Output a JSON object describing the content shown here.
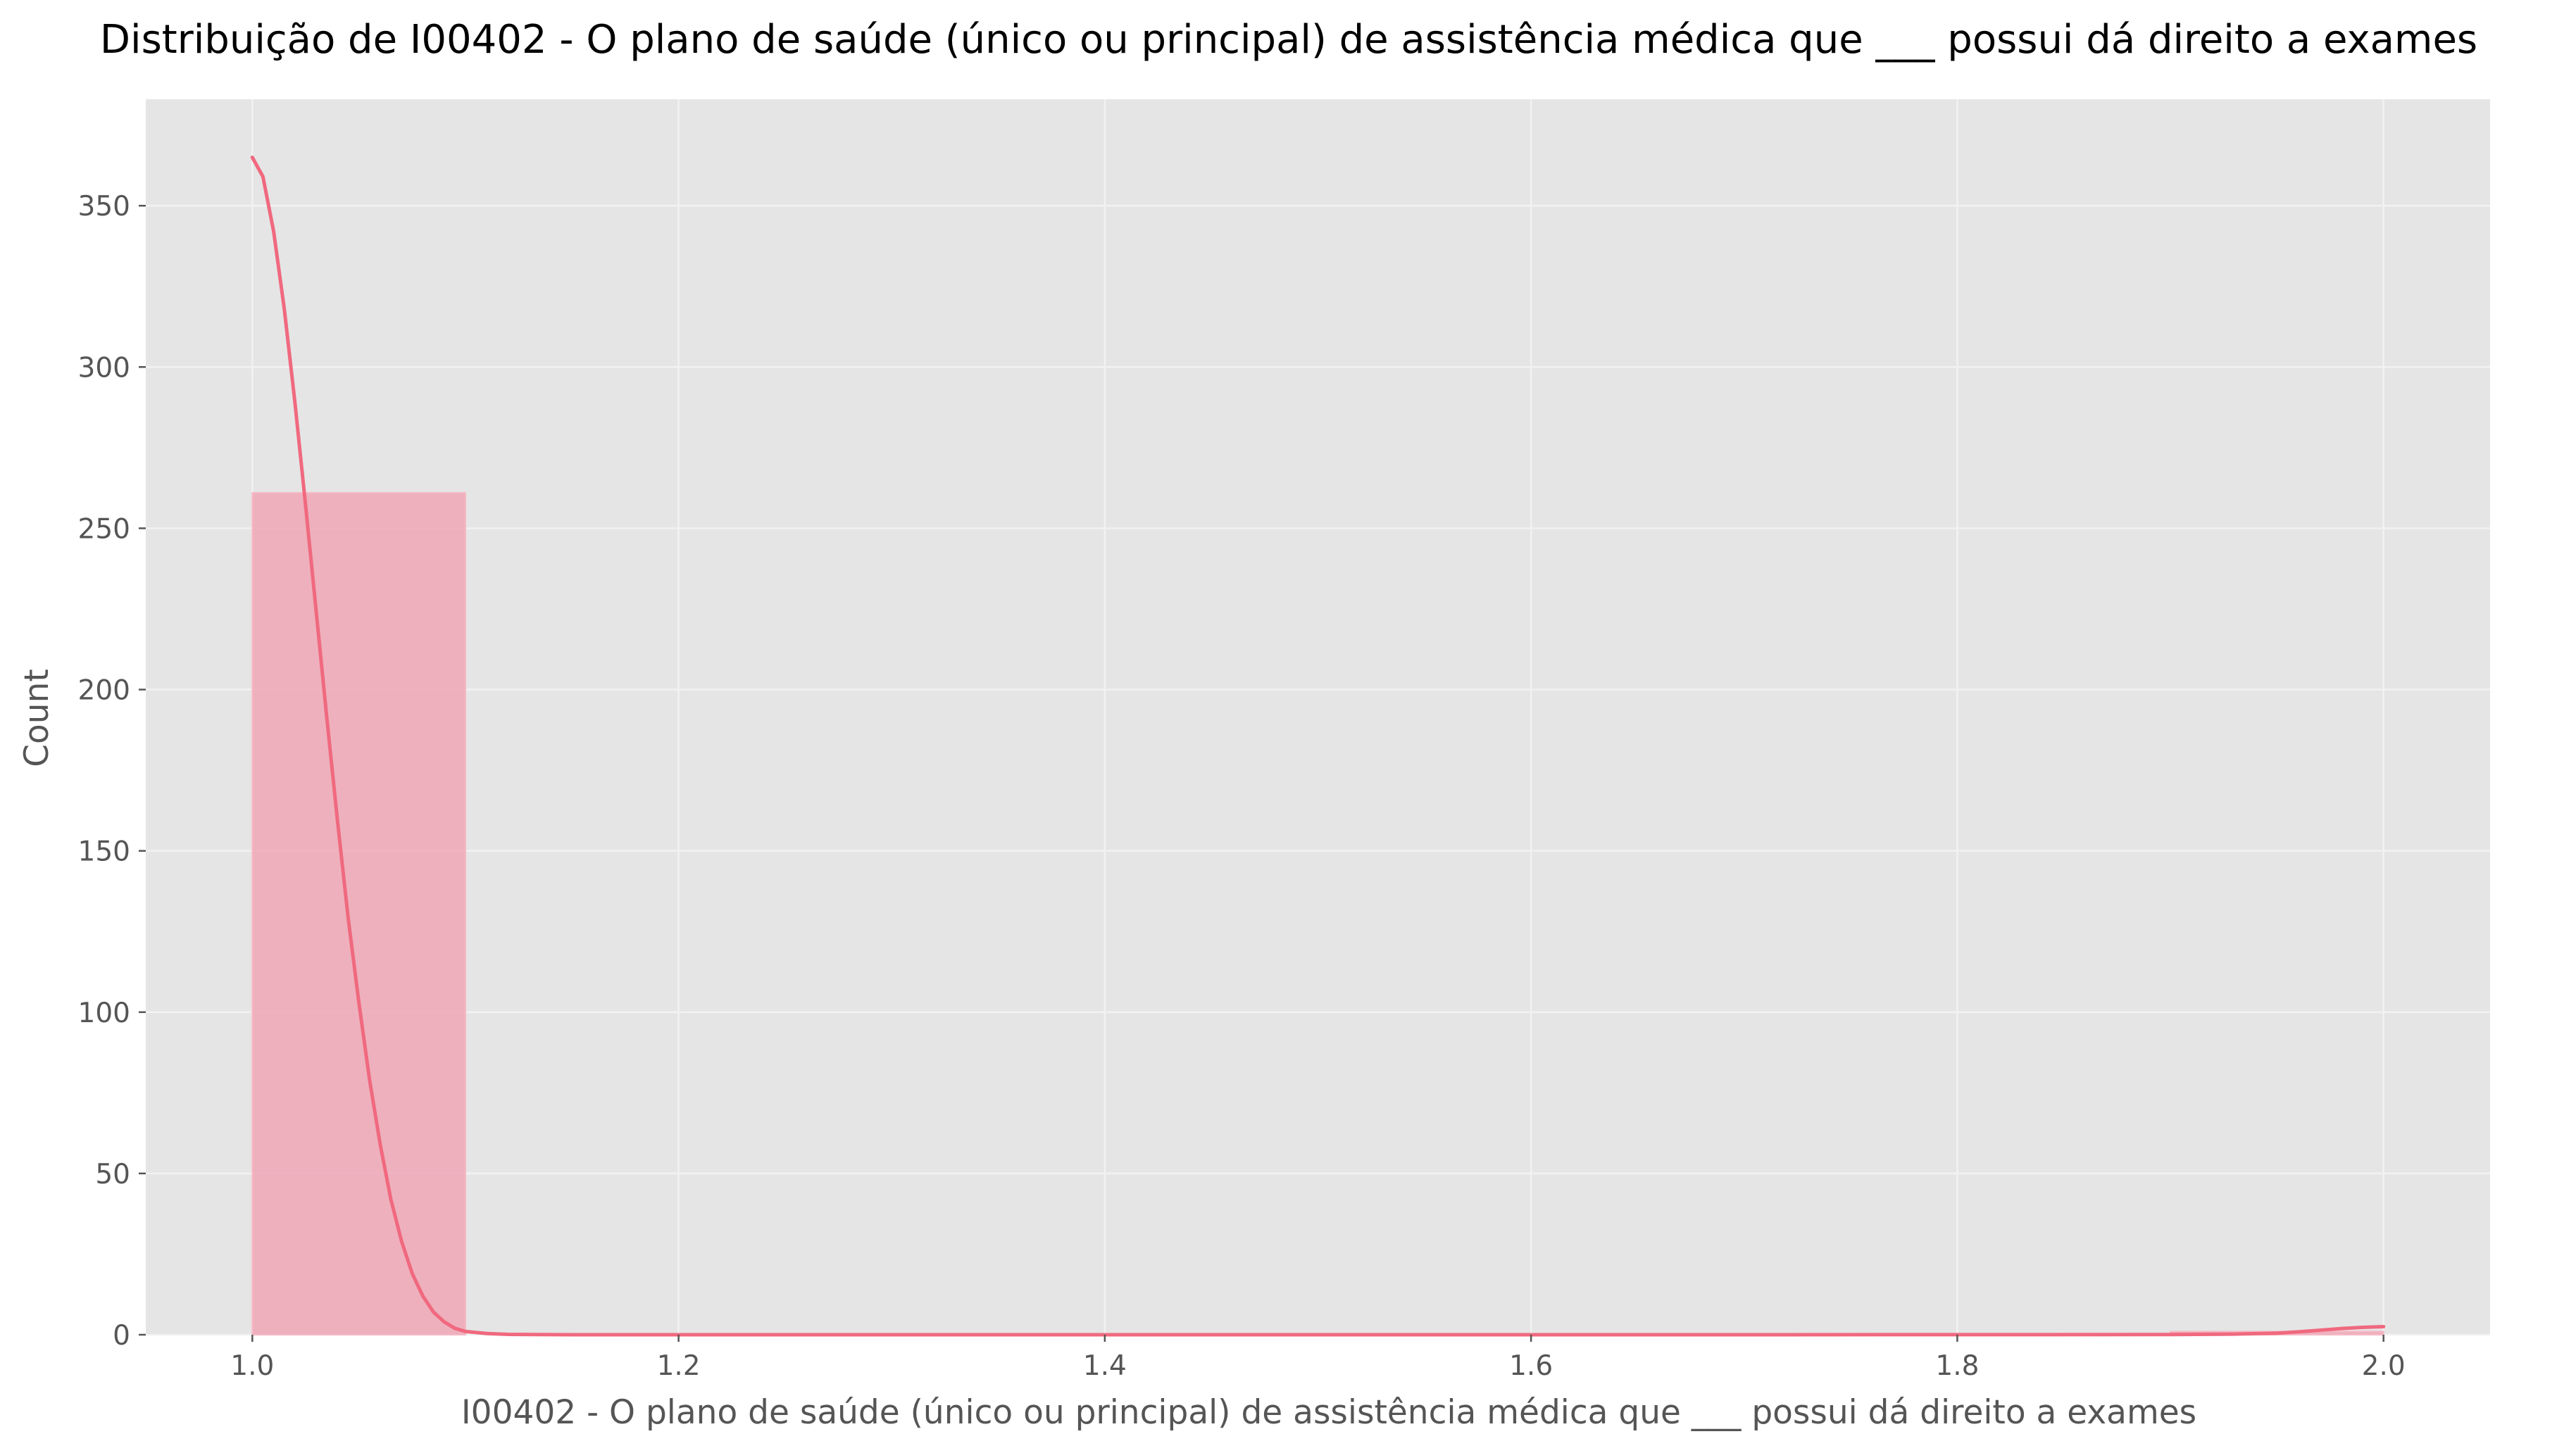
{
  "chart_data": {
    "type": "bar",
    "title": "Distribuição de I00402 - O plano de saúde (único ou principal) de assistência médica que ___ possui dá direito a exames",
    "xlabel": "I00402 - O plano de saúde (único ou principal) de assistência médica que ___ possui dá direito a exames",
    "ylabel": "Count",
    "xlim": [
      0.95,
      2.05
    ],
    "ylim": [
      0,
      383
    ],
    "x_ticks": [
      "1.0",
      "1.2",
      "1.4",
      "1.6",
      "1.8",
      "2.0"
    ],
    "y_ticks": [
      "0",
      "50",
      "100",
      "150",
      "200",
      "250",
      "300",
      "350"
    ],
    "grid": true,
    "bins": [
      {
        "x0": 1.0,
        "x1": 1.1,
        "count": 261
      },
      {
        "x0": 1.1,
        "x1": 1.2,
        "count": 0
      },
      {
        "x0": 1.2,
        "x1": 1.3,
        "count": 0
      },
      {
        "x0": 1.3,
        "x1": 1.4,
        "count": 0
      },
      {
        "x0": 1.4,
        "x1": 1.5,
        "count": 0
      },
      {
        "x0": 1.5,
        "x1": 1.6,
        "count": 0
      },
      {
        "x0": 1.6,
        "x1": 1.7,
        "count": 0
      },
      {
        "x0": 1.7,
        "x1": 1.8,
        "count": 0
      },
      {
        "x0": 1.8,
        "x1": 1.9,
        "count": 0
      },
      {
        "x0": 1.9,
        "x1": 2.0,
        "count": 1
      }
    ],
    "kde": {
      "x": [
        1.0,
        1.005,
        1.01,
        1.015,
        1.02,
        1.025,
        1.03,
        1.035,
        1.04,
        1.045,
        1.05,
        1.055,
        1.06,
        1.065,
        1.07,
        1.075,
        1.08,
        1.085,
        1.09,
        1.095,
        1.1,
        1.11,
        1.12,
        1.15,
        1.3,
        1.5,
        1.7,
        1.9,
        1.93,
        1.95,
        1.96,
        1.97,
        1.98,
        1.99,
        2.0
      ],
      "y": [
        365,
        359,
        342,
        318,
        289,
        257,
        224,
        191,
        159,
        129,
        103,
        79,
        59,
        42,
        29,
        19,
        12,
        7,
        4,
        2,
        1,
        0.4,
        0.1,
        0,
        0,
        0,
        0,
        0.05,
        0.2,
        0.5,
        0.9,
        1.4,
        1.9,
        2.3,
        2.5
      ]
    },
    "colors": {
      "bar_fill": "#f0a7b6",
      "bar_edge": "#f5b8c4",
      "kde_line": "#f0697f",
      "plot_bg": "#e5e5e5",
      "grid": "#f2f2f2"
    }
  }
}
